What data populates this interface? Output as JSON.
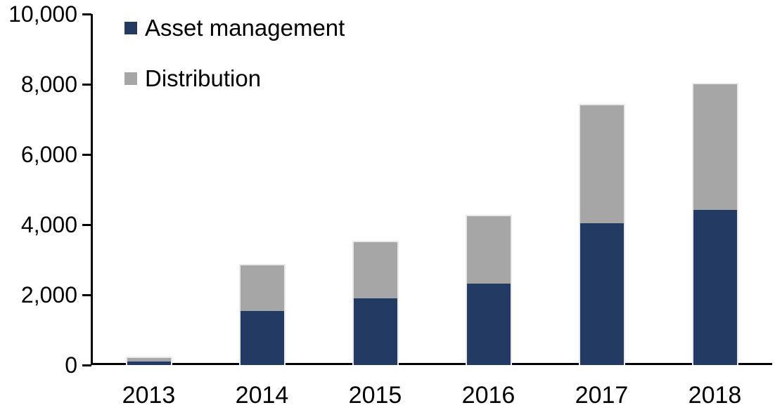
{
  "chart_data": {
    "type": "bar",
    "stacked": true,
    "title": "",
    "xlabel": "",
    "ylabel": "",
    "categories": [
      "2013",
      "2014",
      "2015",
      "2016",
      "2017",
      "2018"
    ],
    "series": [
      {
        "name": "Asset management",
        "color": "#233a63",
        "values": [
          100,
          1550,
          1900,
          2320,
          4050,
          4420
        ]
      },
      {
        "name": "Distribution",
        "color": "#a6a6a6",
        "values": [
          100,
          1300,
          1600,
          1930,
          3350,
          3580
        ]
      }
    ],
    "ylim": [
      0,
      10000
    ],
    "y_ticks": [
      0,
      2000,
      4000,
      6000,
      8000,
      10000
    ],
    "y_tick_labels": [
      "0",
      "2,000",
      "4,000",
      "6,000",
      "8,000",
      "10,000"
    ],
    "grid": false,
    "legend_position": "top-left",
    "axis_color": "#000000",
    "bar_border_color": "#e9e9e9",
    "text_color": "#000000"
  }
}
